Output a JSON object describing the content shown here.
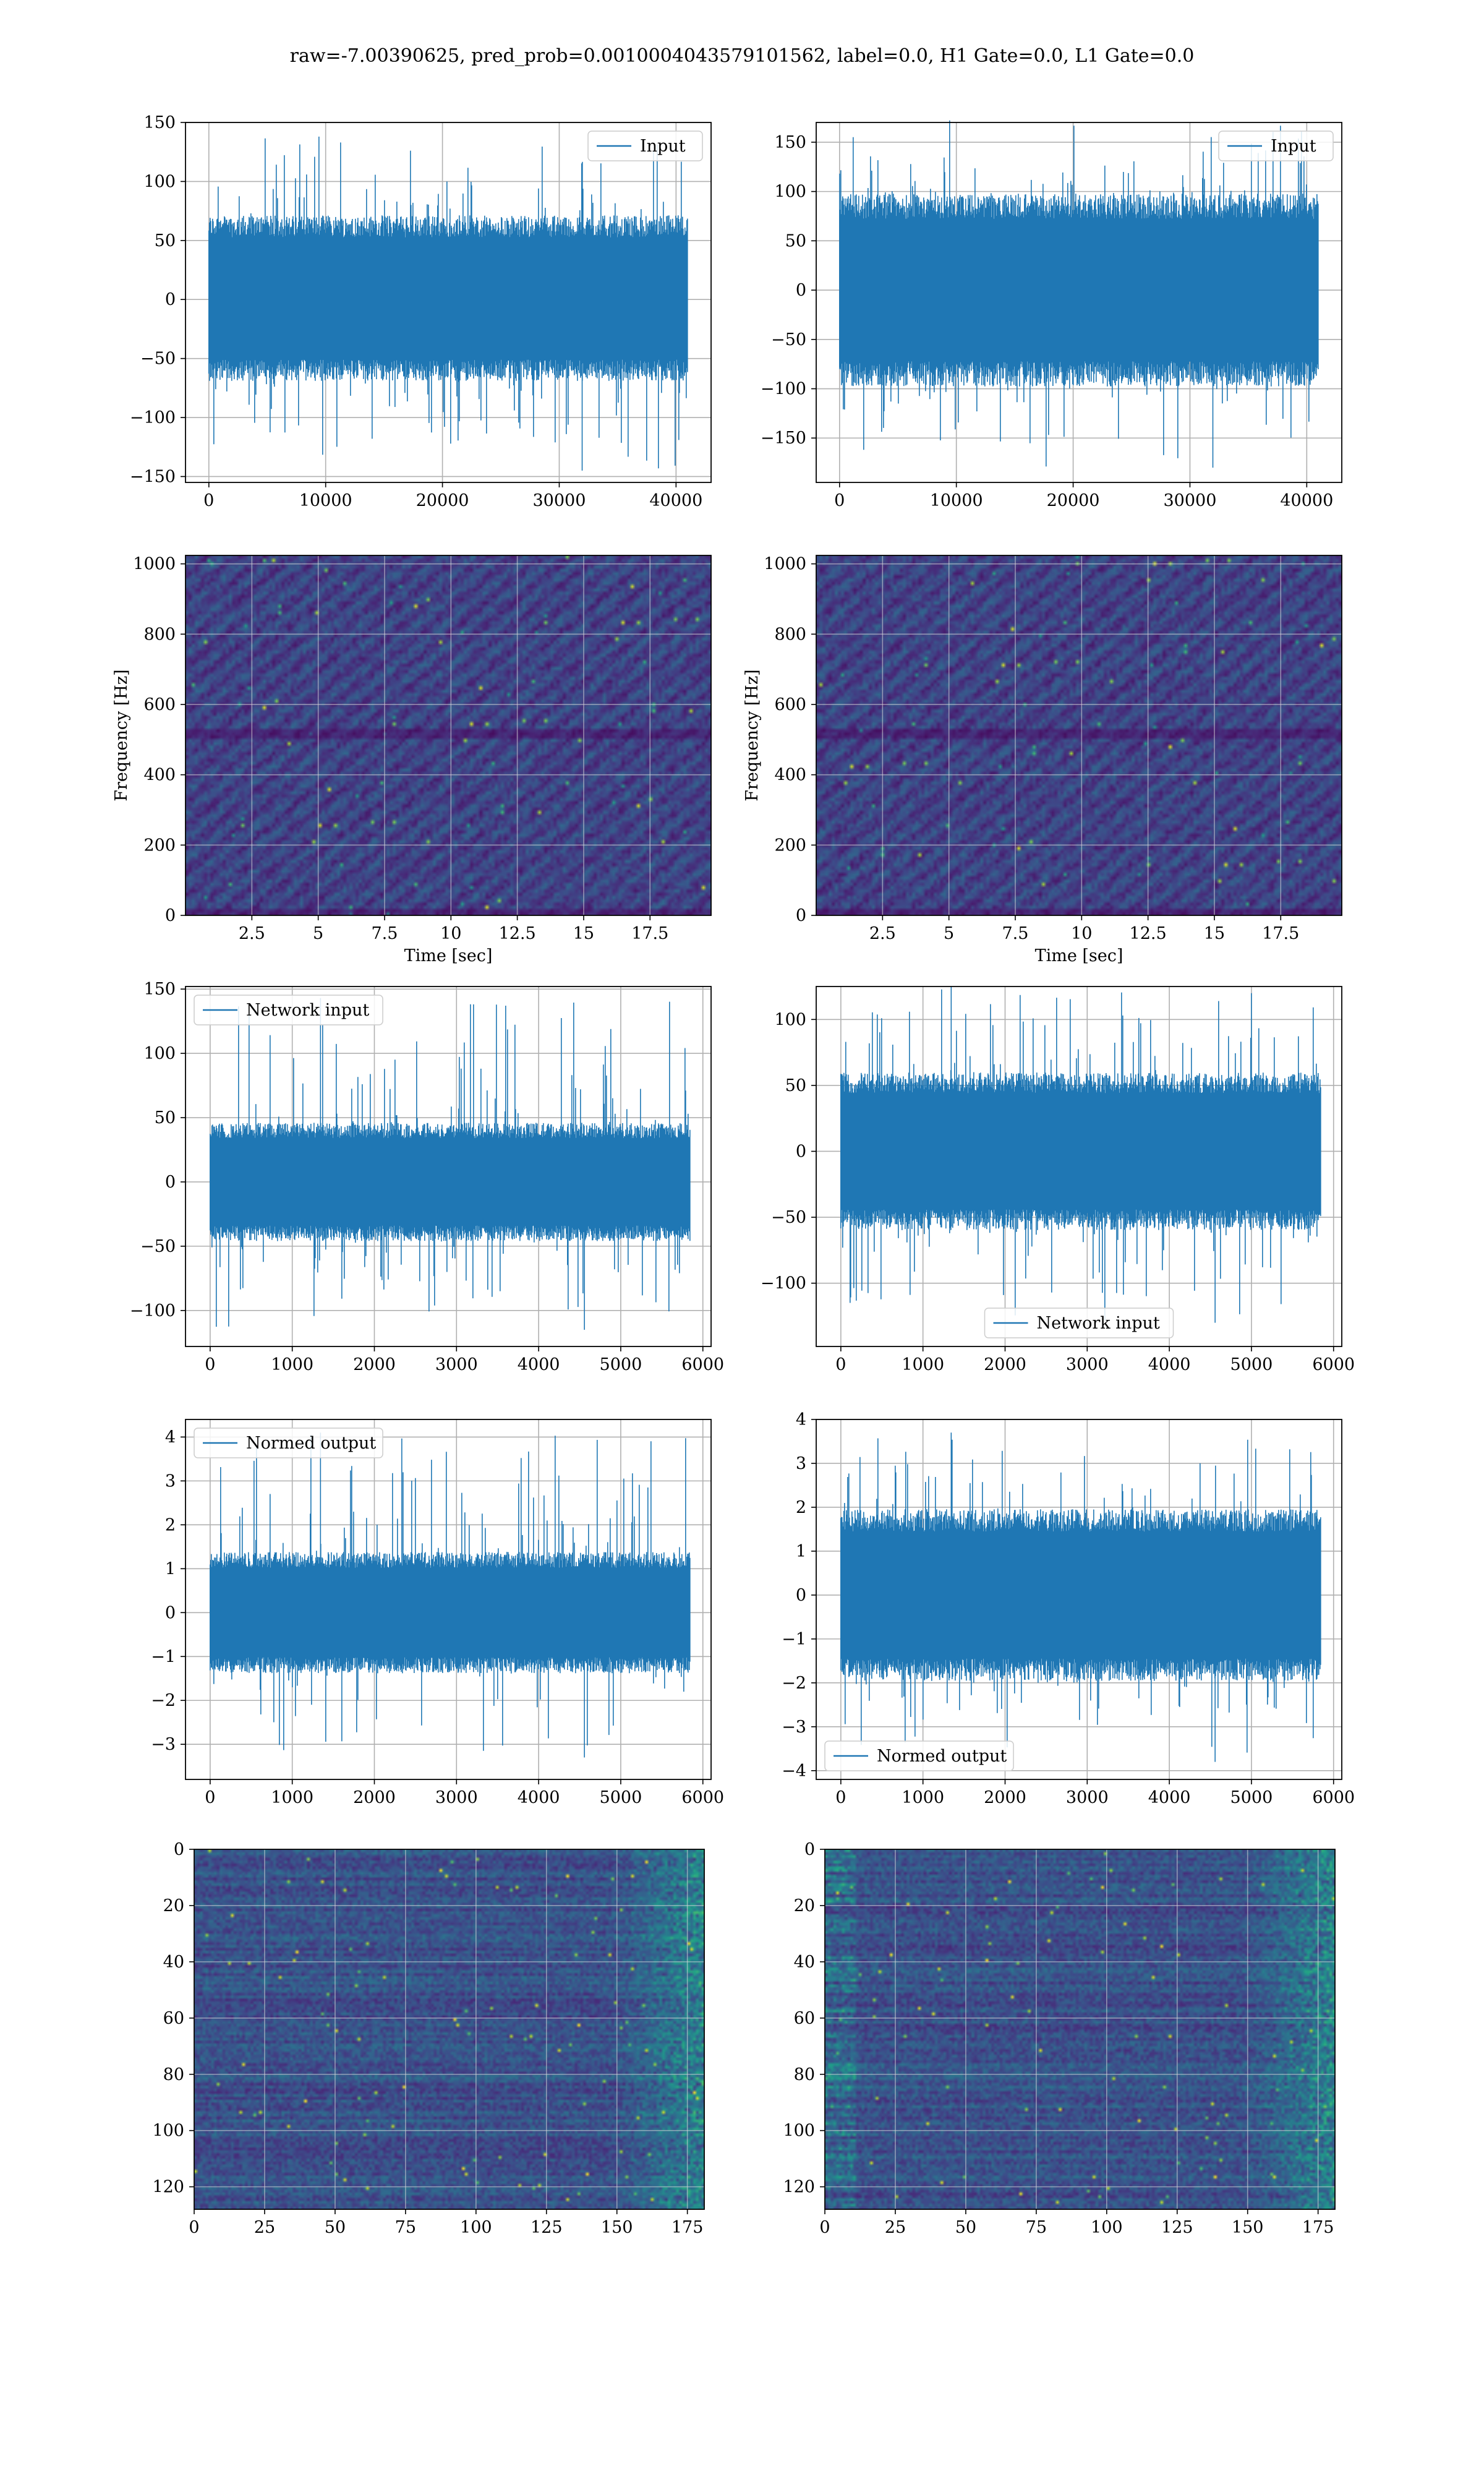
{
  "suptitle": "raw=-7.00390625, pred_prob=0.0010004043579101562, label=0.0, H1 Gate=0.0, L1 Gate=0.0",
  "colors": {
    "line": "#1f77b4",
    "grid": "#b0b0b0",
    "viridis": [
      "#440154",
      "#482878",
      "#3e4a89",
      "#31688e",
      "#26828e",
      "#1f9e89",
      "#35b779",
      "#6ece58",
      "#b5de2b",
      "#fde725"
    ]
  },
  "chart_data": [
    {
      "id": "input-h1",
      "type": "line",
      "legend": "Input",
      "legend_loc": "upper right",
      "x": [
        0,
        40960
      ],
      "xlim": [
        -2000,
        43000
      ],
      "ylim": [
        -155,
        150
      ],
      "xticks": [
        0,
        10000,
        20000,
        30000,
        40000
      ],
      "yticks": [
        -150,
        -100,
        -50,
        0,
        50,
        100,
        150
      ],
      "envelope": {
        "band": [
          -60,
          62
        ],
        "spikes": [
          -145,
          138
        ]
      },
      "grid": true
    },
    {
      "id": "input-l1",
      "type": "line",
      "legend": "Input",
      "legend_loc": "upper right",
      "x": [
        0,
        40960
      ],
      "xlim": [
        -2000,
        43000
      ],
      "ylim": [
        -195,
        170
      ],
      "xticks": [
        0,
        10000,
        20000,
        30000,
        40000
      ],
      "yticks": [
        -150,
        -100,
        -50,
        0,
        50,
        100,
        150
      ],
      "envelope": {
        "band": [
          -85,
          85
        ],
        "spikes": [
          -180,
          172
        ]
      },
      "grid": true
    },
    {
      "id": "spectrogram-h1",
      "type": "heatmap",
      "xlabel": "Time [sec]",
      "ylabel": "Frequency [Hz]",
      "xlim": [
        0,
        19.8
      ],
      "ylim": [
        0,
        1024
      ],
      "xticks": [
        2.5,
        5.0,
        7.5,
        10.0,
        12.5,
        15.0,
        17.5
      ],
      "yticks": [
        0,
        200,
        400,
        600,
        800,
        1000
      ],
      "grid": true
    },
    {
      "id": "spectrogram-l1",
      "type": "heatmap",
      "xlabel": "Time [sec]",
      "ylabel": "Frequency [Hz]",
      "xlim": [
        0,
        19.8
      ],
      "ylim": [
        0,
        1024
      ],
      "xticks": [
        2.5,
        5.0,
        7.5,
        10.0,
        12.5,
        15.0,
        17.5
      ],
      "yticks": [
        0,
        200,
        400,
        600,
        800,
        1000
      ],
      "grid": true
    },
    {
      "id": "network-input-h1",
      "type": "line",
      "legend": "Network input",
      "legend_loc": "upper left",
      "x": [
        0,
        5840
      ],
      "xlim": [
        -300,
        6100
      ],
      "ylim": [
        -128,
        152
      ],
      "xticks": [
        0,
        1000,
        2000,
        3000,
        4000,
        5000,
        6000
      ],
      "yticks": [
        -100,
        -50,
        0,
        50,
        100,
        150
      ],
      "envelope": {
        "band": [
          -40,
          40
        ],
        "spikes": [
          -115,
          143
        ]
      },
      "grid": true
    },
    {
      "id": "network-input-l1",
      "type": "line",
      "legend": "Network input",
      "legend_loc": "lower center",
      "x": [
        0,
        5840
      ],
      "xlim": [
        -300,
        6100
      ],
      "ylim": [
        -148,
        125
      ],
      "xticks": [
        0,
        1000,
        2000,
        3000,
        4000,
        5000,
        6000
      ],
      "yticks": [
        -100,
        -50,
        0,
        50,
        100
      ],
      "envelope": {
        "band": [
          -52,
          52
        ],
        "spikes": [
          -130,
          125
        ]
      },
      "grid": true
    },
    {
      "id": "normed-output-h1",
      "type": "line",
      "legend": "Normed output",
      "legend_loc": "upper left",
      "x": [
        0,
        5840
      ],
      "xlim": [
        -300,
        6100
      ],
      "ylim": [
        -3.8,
        4.4
      ],
      "xticks": [
        0,
        1000,
        2000,
        3000,
        4000,
        5000,
        6000
      ],
      "yticks": [
        -3,
        -2,
        -1,
        0,
        1,
        2,
        3,
        4
      ],
      "envelope": {
        "band": [
          -1.2,
          1.2
        ],
        "spikes": [
          -3.3,
          4.1
        ]
      },
      "grid": true
    },
    {
      "id": "normed-output-l1",
      "type": "line",
      "legend": "Normed output",
      "legend_loc": "lower left",
      "x": [
        0,
        5840
      ],
      "xlim": [
        -300,
        6100
      ],
      "ylim": [
        -4.2,
        4.0
      ],
      "xticks": [
        0,
        1000,
        2000,
        3000,
        4000,
        5000,
        6000
      ],
      "yticks": [
        -4,
        -3,
        -2,
        -1,
        0,
        1,
        2,
        3,
        4
      ],
      "envelope": {
        "band": [
          -1.7,
          1.7
        ],
        "spikes": [
          -3.8,
          3.7
        ]
      },
      "grid": true
    },
    {
      "id": "features-h1",
      "type": "heatmap",
      "xlim": [
        0,
        181
      ],
      "ylim": [
        128,
        0
      ],
      "xticks": [
        0,
        25,
        50,
        75,
        100,
        125,
        150,
        175
      ],
      "yticks": [
        0,
        20,
        40,
        60,
        80,
        100,
        120
      ],
      "grid": true
    },
    {
      "id": "features-l1",
      "type": "heatmap",
      "xlim": [
        0,
        181
      ],
      "ylim": [
        128,
        0
      ],
      "xticks": [
        0,
        25,
        50,
        75,
        100,
        125,
        150,
        175
      ],
      "yticks": [
        0,
        20,
        40,
        60,
        80,
        100,
        120
      ],
      "grid": true
    }
  ]
}
